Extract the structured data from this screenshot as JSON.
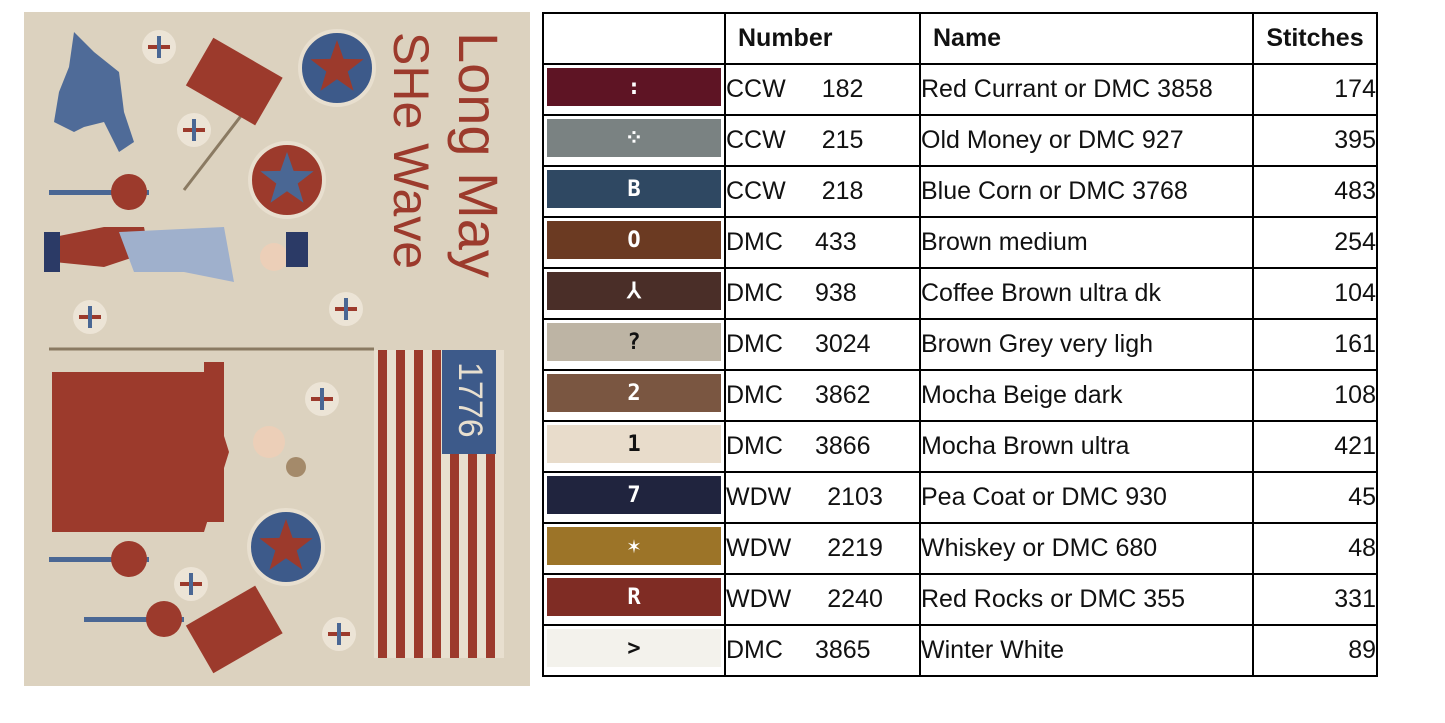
{
  "artwork": {
    "text_line1": "Long May",
    "text_line2": "SHe Wave",
    "year": "1776",
    "colors": {
      "background": "#dcd2bf",
      "red": "#9c3a2c",
      "blue": "#4a6794",
      "light_blue": "#9fb0cc",
      "navy": "#2b3a66"
    }
  },
  "table": {
    "headers": {
      "symbol": "",
      "number": "Number",
      "name": "Name",
      "stitches": "Stitches"
    },
    "rows": [
      {
        "symbol": ":",
        "color": "#5e1424",
        "symbol_color": "#ffffff",
        "brand": "CCW",
        "code": "182",
        "name": "Red Currant or DMC 3858",
        "stitches": "174"
      },
      {
        "symbol": "⁘",
        "color": "#7a8282",
        "symbol_color": "#ffffff",
        "brand": "CCW",
        "code": "215",
        "name": "Old Money or DMC 927",
        "stitches": "395"
      },
      {
        "symbol": "B",
        "color": "#2f4862",
        "symbol_color": "#ffffff",
        "brand": "CCW",
        "code": "218",
        "name": "Blue Corn or DMC 3768",
        "stitches": "483"
      },
      {
        "symbol": "O",
        "color": "#6b3a22",
        "symbol_color": "#ffffff",
        "brand": "DMC",
        "code": "433",
        "name": "Brown medium",
        "stitches": "254"
      },
      {
        "symbol": "⅄",
        "color": "#4a2e28",
        "symbol_color": "#ffffff",
        "brand": "DMC",
        "code": "938",
        "name": "Coffee Brown ultra dk",
        "stitches": "104"
      },
      {
        "symbol": "?",
        "color": "#bdb4a4",
        "symbol_color": "#111111",
        "brand": "DMC",
        "code": "3024",
        "name": "Brown Grey very ligh",
        "stitches": "161"
      },
      {
        "symbol": "2",
        "color": "#7a5641",
        "symbol_color": "#ffffff",
        "brand": "DMC",
        "code": "3862",
        "name": "Mocha Beige dark",
        "stitches": "108"
      },
      {
        "symbol": "1",
        "color": "#e8dccb",
        "symbol_color": "#111111",
        "brand": "DMC",
        "code": "3866",
        "name": "Mocha Brown ultra",
        "stitches": "421"
      },
      {
        "symbol": "7",
        "color": "#20243e",
        "symbol_color": "#ffffff",
        "brand": "WDW",
        "code": "2103",
        "name": "Pea Coat or DMC 930",
        "stitches": "45"
      },
      {
        "symbol": "✶",
        "color": "#9c7428",
        "symbol_color": "#ffffff",
        "brand": "WDW",
        "code": "2219",
        "name": "Whiskey or DMC 680",
        "stitches": "48"
      },
      {
        "symbol": "R",
        "color": "#7f2c24",
        "symbol_color": "#ffffff",
        "brand": "WDW",
        "code": "2240",
        "name": "Red Rocks or DMC 355",
        "stitches": "331"
      },
      {
        "symbol": ">",
        "color": "#f3f2ec",
        "symbol_color": "#111111",
        "brand": "DMC",
        "code": "3865",
        "name": "Winter White",
        "stitches": "89"
      }
    ]
  }
}
